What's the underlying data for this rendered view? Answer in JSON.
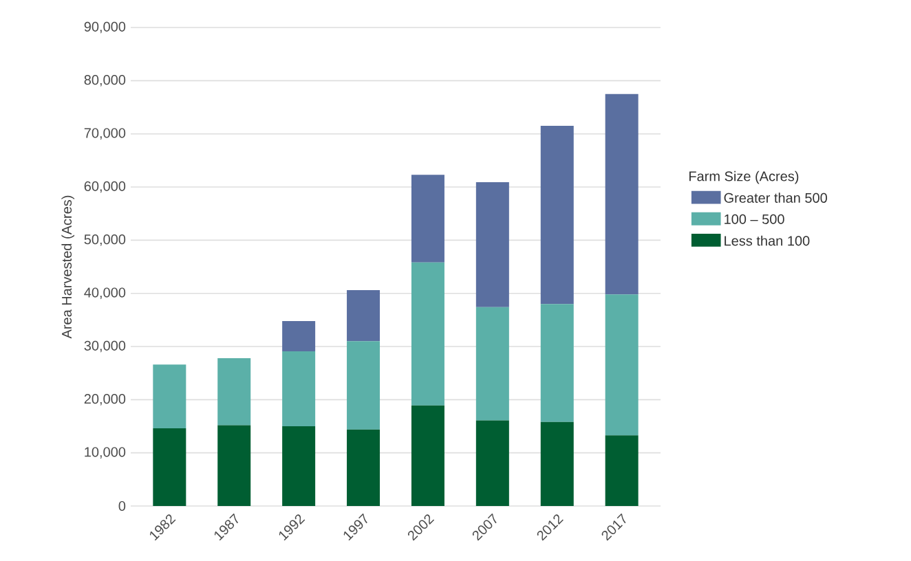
{
  "chart_data": {
    "type": "bar",
    "stacked": true,
    "ylabel": "Area Harvested (Acres)",
    "legend_title": "Farm Size (Acres)",
    "legend": "right",
    "grid": "y",
    "categories": [
      "1982",
      "1987",
      "1992",
      "1997",
      "2002",
      "2007",
      "2012",
      "2017"
    ],
    "series": [
      {
        "name": "Less than 100",
        "color": "#005e32",
        "values": [
          14600,
          15200,
          15000,
          14400,
          18900,
          16100,
          15800,
          13300
        ]
      },
      {
        "name": "100 – 500",
        "color": "#5bb0a8",
        "values": [
          12000,
          12600,
          14100,
          16600,
          26900,
          21300,
          22200,
          26500
        ]
      },
      {
        "name": "Greater than 500",
        "color": "#5a6fa0",
        "values": [
          null,
          null,
          5700,
          9600,
          16500,
          23500,
          33500,
          37700
        ]
      }
    ],
    "ylim": [
      0,
      90000
    ],
    "yticks": [
      {
        "value": 0,
        "label": "0"
      },
      {
        "value": 10000,
        "label": "10,000"
      },
      {
        "value": 20000,
        "label": "20,000"
      },
      {
        "value": 30000,
        "label": "30,000"
      },
      {
        "value": 40000,
        "label": "40,000"
      },
      {
        "value": 50000,
        "label": "50,000"
      },
      {
        "value": 60000,
        "label": "60,000"
      },
      {
        "value": 70000,
        "label": "70,000"
      },
      {
        "value": 80000,
        "label": "80,000"
      },
      {
        "value": 90000,
        "label": "90,000"
      }
    ]
  }
}
